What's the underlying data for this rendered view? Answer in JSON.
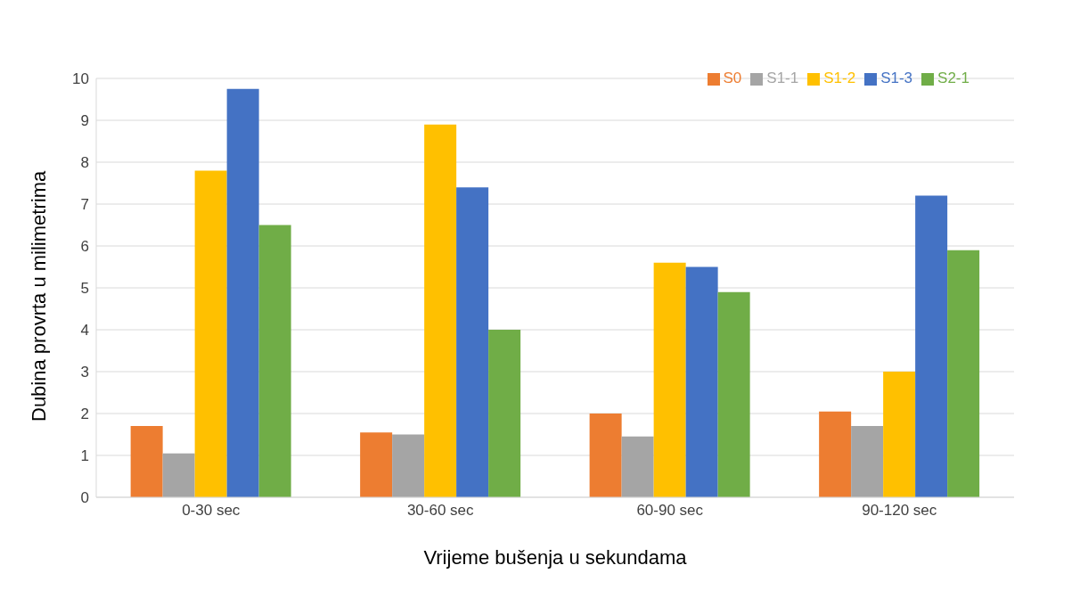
{
  "chart_data": {
    "type": "bar",
    "xlabel": "Vrijeme bušenja u sekundama",
    "ylabel": "Dubina provrta u milimetrima",
    "categories": [
      "0-30 sec",
      "30-60 sec",
      "60-90 sec",
      "90-120 sec"
    ],
    "series": [
      {
        "name": "S0",
        "color": "#ed7d31",
        "values": [
          1.7,
          1.55,
          2.0,
          2.05
        ]
      },
      {
        "name": "S1-1",
        "color": "#a5a5a5",
        "values": [
          1.05,
          1.5,
          1.45,
          1.7
        ]
      },
      {
        "name": "S1-2",
        "color": "#ffc000",
        "values": [
          7.8,
          8.9,
          5.6,
          3.0
        ]
      },
      {
        "name": "S1-3",
        "color": "#4472c4",
        "values": [
          9.75,
          7.4,
          5.5,
          7.2
        ]
      },
      {
        "name": "S2-1",
        "color": "#70ad47",
        "values": [
          6.5,
          4.0,
          4.9,
          5.9
        ]
      }
    ],
    "ylim": [
      0,
      10
    ],
    "yticks": [
      0,
      1,
      2,
      3,
      4,
      5,
      6,
      7,
      8,
      9,
      10
    ],
    "grid": "y",
    "legend": "top right"
  }
}
